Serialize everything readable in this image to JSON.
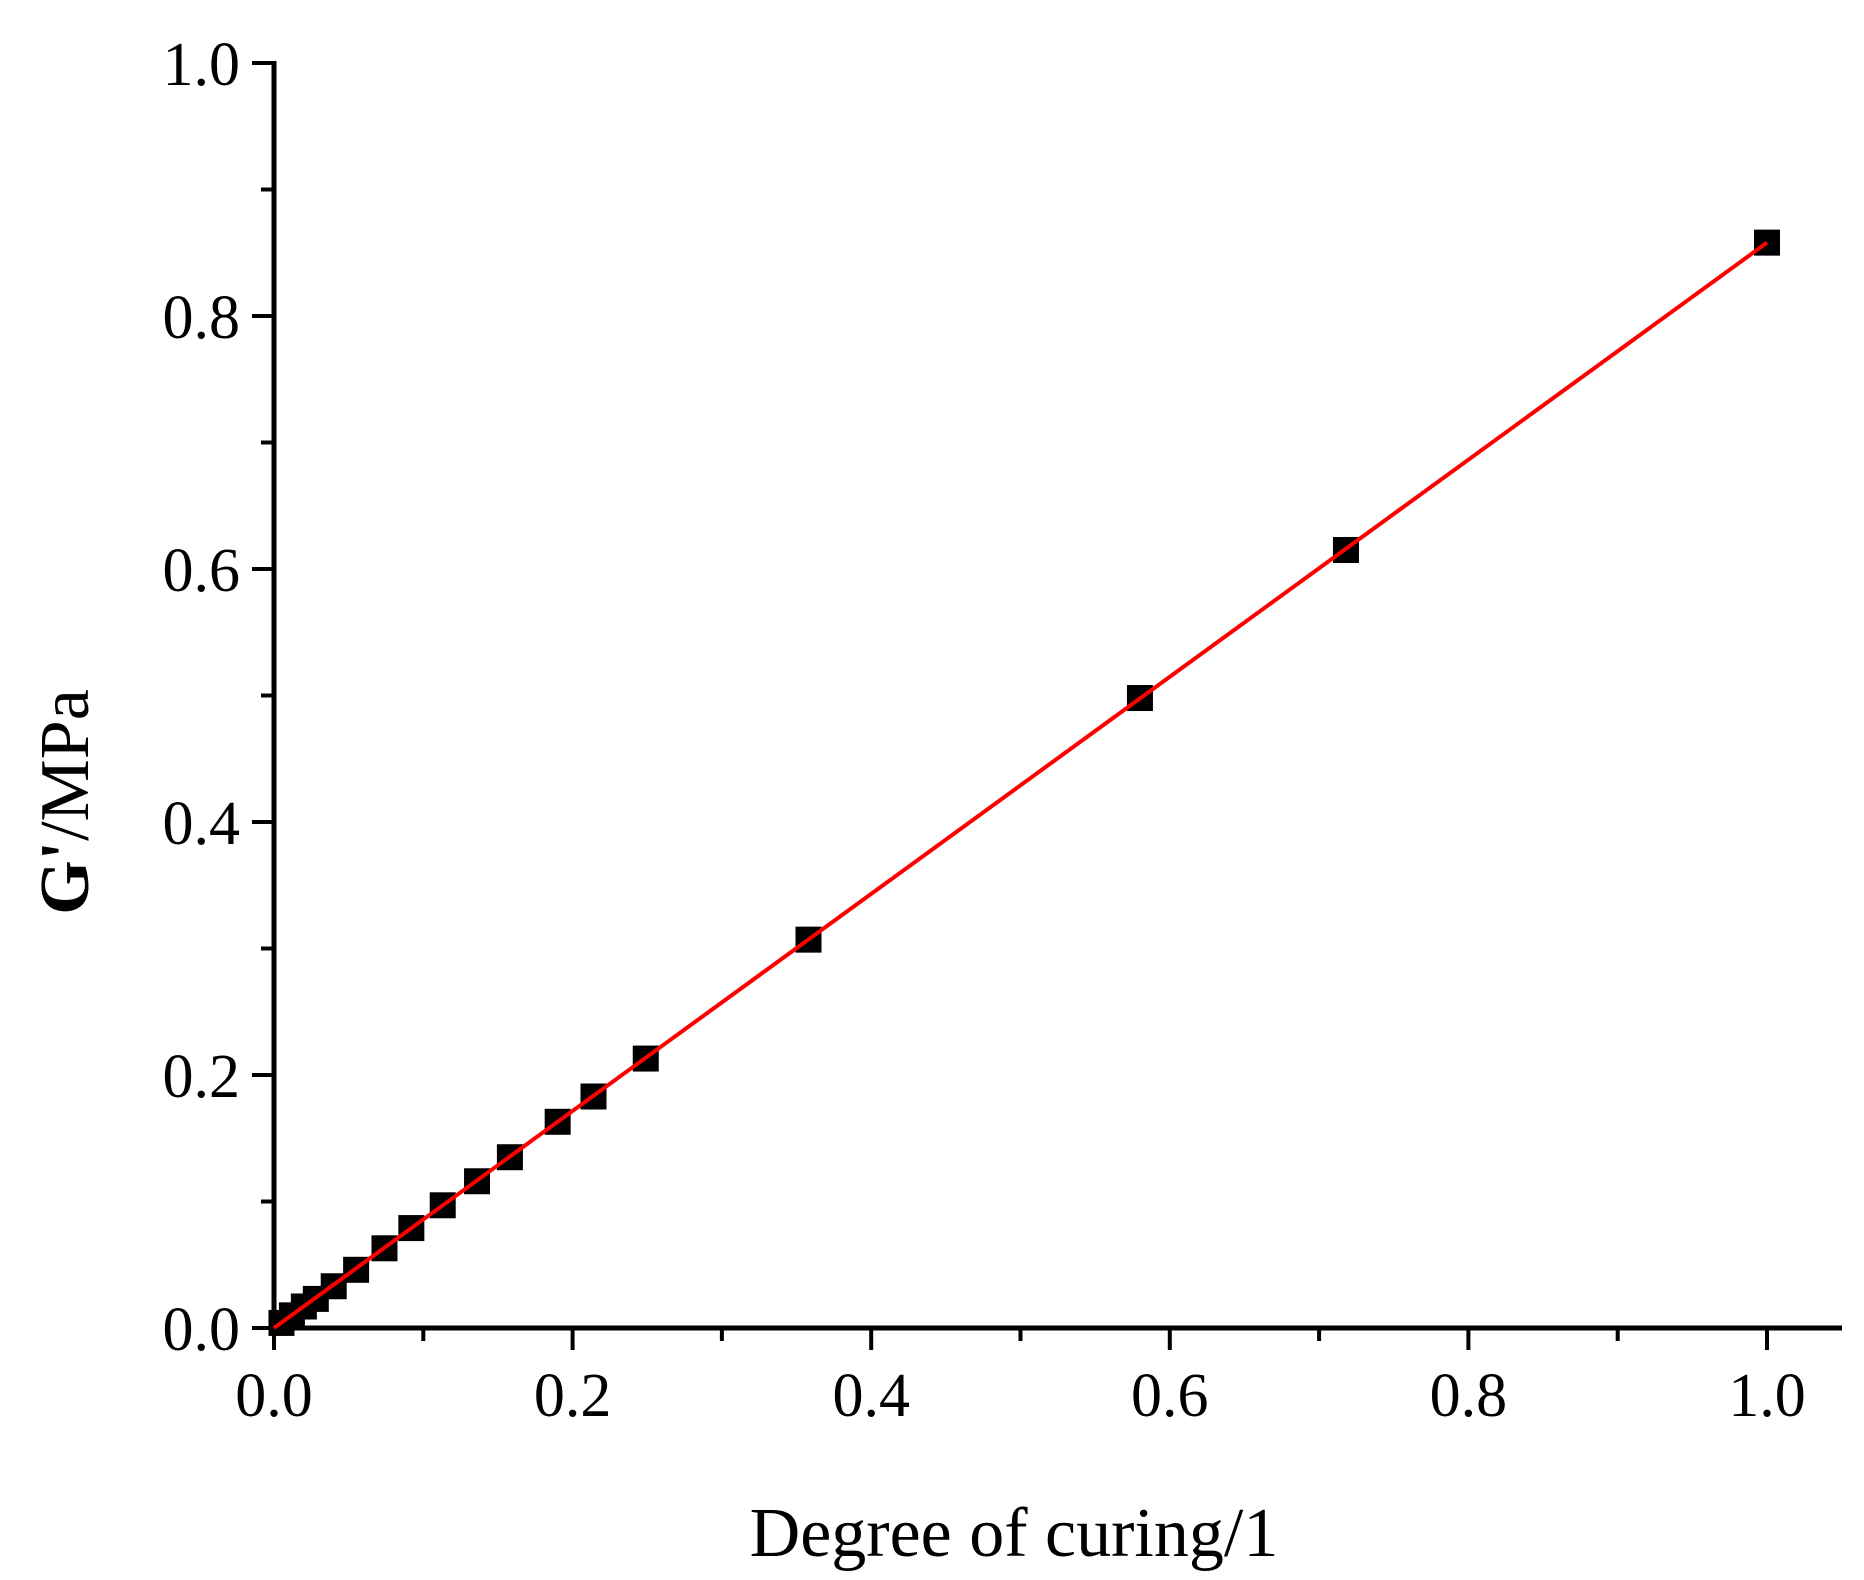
{
  "chart_data": {
    "type": "scatter",
    "title": "",
    "xlabel": "Degree of curing/1",
    "ylabel_bold": "G'",
    "ylabel_rest": "/MPa",
    "xlim": [
      0.0,
      1.05
    ],
    "ylim": [
      0.0,
      1.0
    ],
    "x_ticks": [
      "0.0",
      "0.2",
      "0.4",
      "0.6",
      "0.8",
      "1.0"
    ],
    "y_ticks": [
      "0.0",
      "0.2",
      "0.4",
      "0.6",
      "0.8",
      "1.0"
    ],
    "grid": false,
    "legend": "none",
    "series": [
      {
        "marker": "square",
        "color": "#000000",
        "points": [
          {
            "x": 0.005,
            "y": 0.004
          },
          {
            "x": 0.012,
            "y": 0.01
          },
          {
            "x": 0.02,
            "y": 0.017
          },
          {
            "x": 0.028,
            "y": 0.023
          },
          {
            "x": 0.04,
            "y": 0.033
          },
          {
            "x": 0.055,
            "y": 0.046
          },
          {
            "x": 0.074,
            "y": 0.063
          },
          {
            "x": 0.092,
            "y": 0.079
          },
          {
            "x": 0.113,
            "y": 0.097
          },
          {
            "x": 0.136,
            "y": 0.116
          },
          {
            "x": 0.158,
            "y": 0.135
          },
          {
            "x": 0.19,
            "y": 0.163
          },
          {
            "x": 0.214,
            "y": 0.183
          },
          {
            "x": 0.249,
            "y": 0.213
          },
          {
            "x": 0.358,
            "y": 0.307
          },
          {
            "x": 0.58,
            "y": 0.498
          },
          {
            "x": 0.718,
            "y": 0.615
          },
          {
            "x": 1.0,
            "y": 0.858
          }
        ]
      }
    ],
    "fit_line": {
      "color": "#ff0000",
      "x": [
        0.0,
        1.0
      ],
      "y": [
        0.0,
        0.858
      ]
    }
  }
}
